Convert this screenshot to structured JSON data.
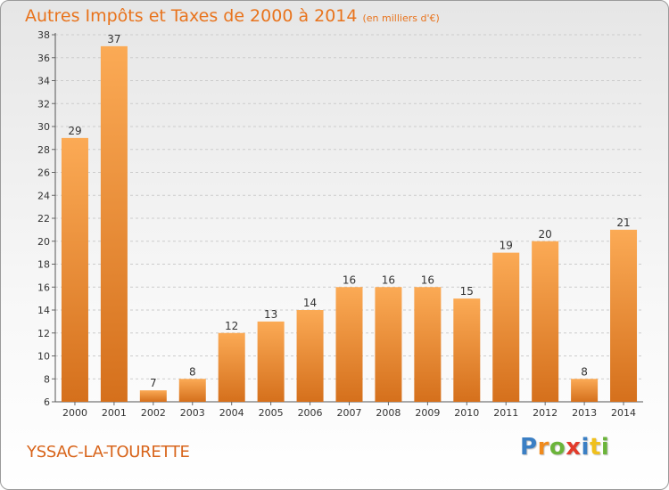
{
  "title": "Autres Impôts et Taxes de 2000 à 2014",
  "unit_note": "(en milliers d'€)",
  "commune": "YSSAC-LA-TOURETTE",
  "logo": {
    "letters": [
      "P",
      "r",
      "o",
      "x",
      "i",
      "t",
      "i"
    ],
    "colors": [
      "#3b7fc4",
      "#f08a1c",
      "#6bb43a",
      "#e23b2b",
      "#3b7fc4",
      "#f0c01c",
      "#6bb43a"
    ]
  },
  "colors": {
    "bar_light": "#fbaa55",
    "bar_dark": "#d5701c",
    "grid": "#cccccc",
    "accent": "#e8731c"
  },
  "chart_data": {
    "type": "bar",
    "categories": [
      "2000",
      "2001",
      "2002",
      "2003",
      "2004",
      "2005",
      "2006",
      "2007",
      "2008",
      "2009",
      "2010",
      "2011",
      "2012",
      "2013",
      "2014"
    ],
    "values": [
      29,
      37,
      7,
      8,
      12,
      13,
      14,
      16,
      16,
      16,
      15,
      19,
      20,
      8,
      21
    ],
    "title": "Autres Impôts et Taxes de 2000 à 2014",
    "ylabel": "",
    "xlabel": "",
    "ylim": [
      6,
      38
    ],
    "yticks": [
      6,
      8,
      10,
      12,
      14,
      16,
      18,
      20,
      22,
      24,
      26,
      28,
      30,
      32,
      34,
      36,
      38
    ],
    "grid": "horizontal dashed",
    "data_labels": true
  }
}
